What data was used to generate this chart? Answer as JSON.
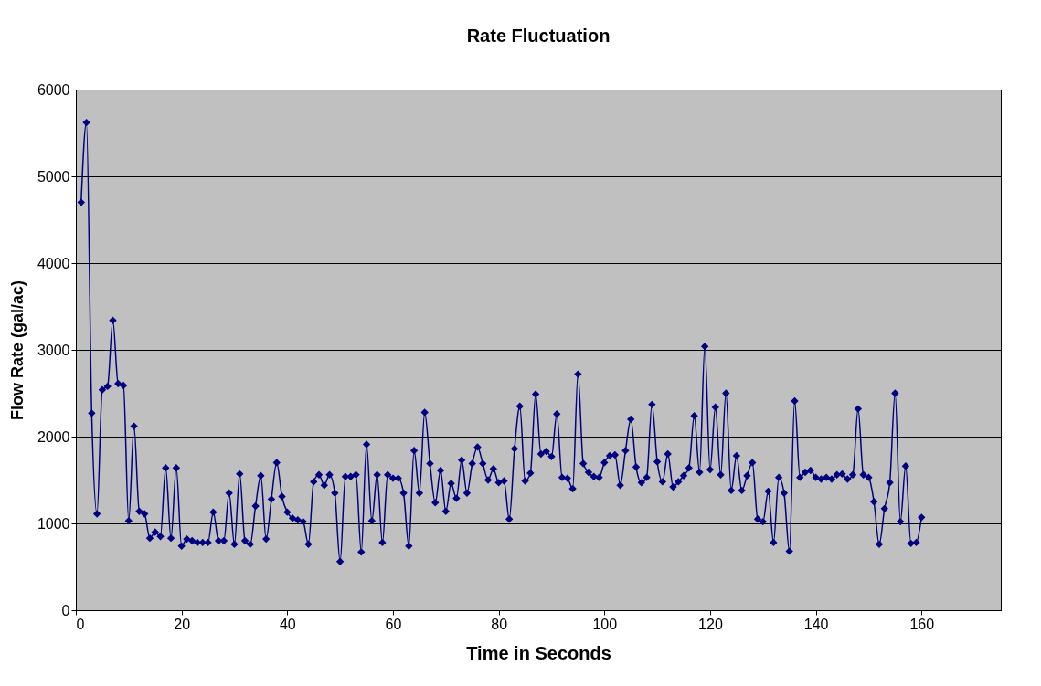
{
  "chart_data": {
    "type": "line",
    "title": "Rate Fluctuation",
    "xlabel": "Time in Seconds",
    "ylabel": "Flow Rate (gal/ac)",
    "x": [
      1,
      2,
      3,
      4,
      5,
      6,
      7,
      8,
      9,
      10,
      11,
      12,
      13,
      14,
      15,
      16,
      17,
      18,
      19,
      20,
      21,
      22,
      23,
      24,
      25,
      26,
      27,
      28,
      29,
      30,
      31,
      32,
      33,
      34,
      35,
      36,
      37,
      38,
      39,
      40,
      41,
      42,
      43,
      44,
      45,
      46,
      47,
      48,
      49,
      50,
      51,
      52,
      53,
      54,
      55,
      56,
      57,
      58,
      59,
      60,
      61,
      62,
      63,
      64,
      65,
      66,
      67,
      68,
      69,
      70,
      71,
      72,
      73,
      74,
      75,
      76,
      77,
      78,
      79,
      80,
      81,
      82,
      83,
      84,
      85,
      86,
      87,
      88,
      89,
      90,
      91,
      92,
      93,
      94,
      95,
      96,
      97,
      98,
      99,
      100,
      101,
      102,
      103,
      104,
      105,
      106,
      107,
      108,
      109,
      110,
      111,
      112,
      113,
      114,
      115,
      116,
      117,
      118,
      119,
      120,
      121,
      122,
      123,
      124,
      125,
      126,
      127,
      128,
      129,
      130,
      131,
      132,
      133,
      134,
      135,
      136,
      137,
      138,
      139,
      140,
      141,
      142,
      143,
      144,
      145,
      146,
      147,
      148,
      149,
      150,
      151,
      152,
      153,
      154,
      155,
      156,
      157,
      158,
      159,
      160
    ],
    "series": [
      {
        "color": "#000080",
        "values": [
          4700,
          5620,
          2270,
          1110,
          2540,
          2580,
          3340,
          2610,
          2590,
          1030,
          2120,
          1140,
          1110,
          830,
          900,
          850,
          1640,
          830,
          1640,
          740,
          820,
          800,
          780,
          780,
          780,
          1130,
          800,
          800,
          1350,
          760,
          1570,
          800,
          760,
          1200,
          1550,
          820,
          1280,
          1700,
          1310,
          1130,
          1060,
          1040,
          1020,
          760,
          1480,
          1560,
          1440,
          1560,
          1350,
          560,
          1540,
          1540,
          1560,
          670,
          1910,
          1030,
          1560,
          780,
          1560,
          1520,
          1520,
          1350,
          740,
          1840,
          1350,
          2280,
          1690,
          1240,
          1610,
          1140,
          1460,
          1290,
          1730,
          1350,
          1690,
          1880,
          1690,
          1500,
          1630,
          1470,
          1490,
          1050,
          1860,
          2350,
          1490,
          1580,
          2490,
          1800,
          1830,
          1770,
          2260,
          1530,
          1520,
          1400,
          2720,
          1690,
          1590,
          1540,
          1530,
          1700,
          1780,
          1790,
          1440,
          1840,
          2200,
          1650,
          1470,
          1530,
          2370,
          1710,
          1480,
          1800,
          1420,
          1480,
          1550,
          1640,
          2240,
          1590,
          3040,
          1620,
          2340,
          1560,
          2500,
          1380,
          1780,
          1380,
          1550,
          1700,
          1050,
          1020,
          1370,
          780,
          1530,
          1350,
          680,
          2410,
          1530,
          1590,
          1610,
          1530,
          1510,
          1530,
          1510,
          1560,
          1570,
          1510,
          1560,
          2320,
          1560,
          1530,
          1250,
          760,
          1170,
          1470,
          2500,
          1020,
          1660,
          770,
          780,
          1070
        ]
      }
    ],
    "xlim": [
      0,
      175
    ],
    "xticks": [
      0,
      20,
      40,
      60,
      80,
      100,
      120,
      140,
      160
    ],
    "ylim": [
      0,
      6000
    ],
    "yticks": [
      0,
      1000,
      2000,
      3000,
      4000,
      5000,
      6000
    ],
    "grid": "y",
    "legend": false,
    "marker": "diamond",
    "line_style": "solid"
  }
}
